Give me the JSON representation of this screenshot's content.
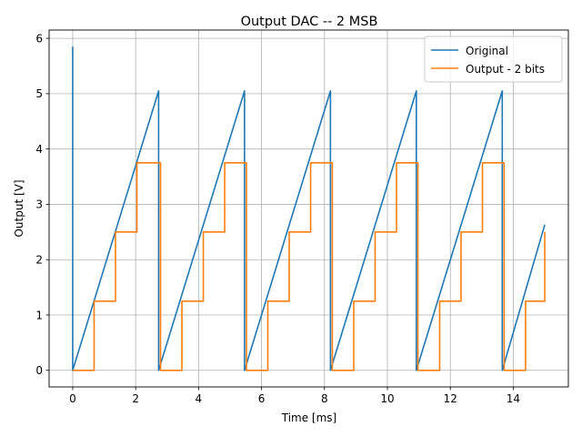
{
  "chart_data": {
    "type": "line",
    "title": "Output DAC -- 2 MSB",
    "xlabel": "Time [ms]",
    "ylabel": "Output [V]",
    "xlim": [
      -0.75,
      15.75
    ],
    "ylim": [
      -0.3,
      6.15
    ],
    "xticks": [
      0,
      2,
      4,
      6,
      8,
      10,
      12,
      14
    ],
    "yticks": [
      0,
      1,
      2,
      3,
      4,
      5,
      6
    ],
    "grid": true,
    "legend_position": "top-right",
    "series": [
      {
        "name": "Original",
        "color": "#1f77b4",
        "x": [
          0,
          0,
          2.73,
          2.73,
          5.46,
          5.46,
          8.19,
          8.19,
          10.92,
          10.92,
          13.65,
          13.65,
          15.0
        ],
        "y": [
          5.85,
          0.0,
          5.05,
          0.0,
          5.05,
          0.0,
          5.05,
          0.0,
          5.05,
          0.0,
          5.05,
          0.0,
          2.63
        ]
      },
      {
        "name": "Output - 2 bits",
        "color": "#ff7f0e",
        "x": [
          0,
          0.68,
          0.68,
          1.36,
          1.36,
          2.04,
          2.04,
          2.79,
          2.79,
          3.47,
          3.47,
          4.15,
          4.15,
          4.83,
          4.83,
          5.52,
          5.52,
          6.2,
          6.2,
          6.88,
          6.88,
          7.56,
          7.56,
          8.25,
          8.25,
          8.93,
          8.93,
          9.61,
          9.61,
          10.29,
          10.29,
          10.97,
          10.97,
          11.66,
          11.66,
          12.34,
          12.34,
          13.02,
          13.02,
          13.71,
          13.71,
          14.39,
          14.39,
          15.0,
          15.0
        ],
        "y": [
          0,
          0,
          1.25,
          1.25,
          2.5,
          2.5,
          3.75,
          3.75,
          0,
          0,
          1.25,
          1.25,
          2.5,
          2.5,
          3.75,
          3.75,
          0,
          0,
          1.25,
          1.25,
          2.5,
          2.5,
          3.75,
          3.75,
          0,
          0,
          1.25,
          1.25,
          2.5,
          2.5,
          3.75,
          3.75,
          0,
          0,
          1.25,
          1.25,
          2.5,
          2.5,
          3.75,
          3.75,
          0,
          0,
          1.25,
          1.25,
          2.5
        ]
      }
    ]
  }
}
